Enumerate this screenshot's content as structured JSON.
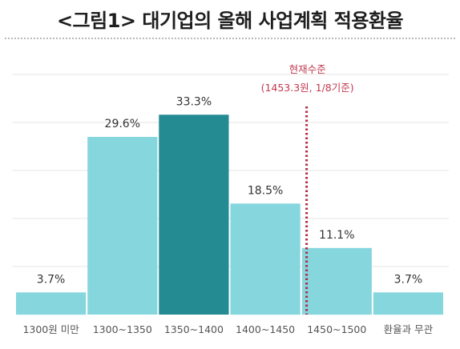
{
  "title": "<그림1> 대기업의 올해 사업계획 적용환율",
  "chart_data": {
    "type": "bar",
    "title": "<그림1> 대기업의 올해 사업계획 적용환율",
    "categories": [
      "1300원 미만",
      "1300~1350",
      "1350~1400",
      "1400~1450",
      "1450~1500",
      "환율과 무관"
    ],
    "values": [
      3.7,
      29.6,
      33.3,
      18.5,
      11.1,
      3.7
    ],
    "data_labels": [
      "3.7%",
      "29.6%",
      "33.3%",
      "18.5%",
      "11.1%",
      "3.7%"
    ],
    "highlight_index": 2,
    "xlabel": "",
    "ylabel": "",
    "ylim": [
      0,
      40
    ],
    "grid": true,
    "colors": {
      "bar": "#86d6de",
      "highlight": "#258b93",
      "reference": "#b22a45"
    },
    "reference_line": {
      "value": 1453.3,
      "label": "현재수준",
      "sublabel": "(1453.3원, 1/8기준)"
    }
  }
}
